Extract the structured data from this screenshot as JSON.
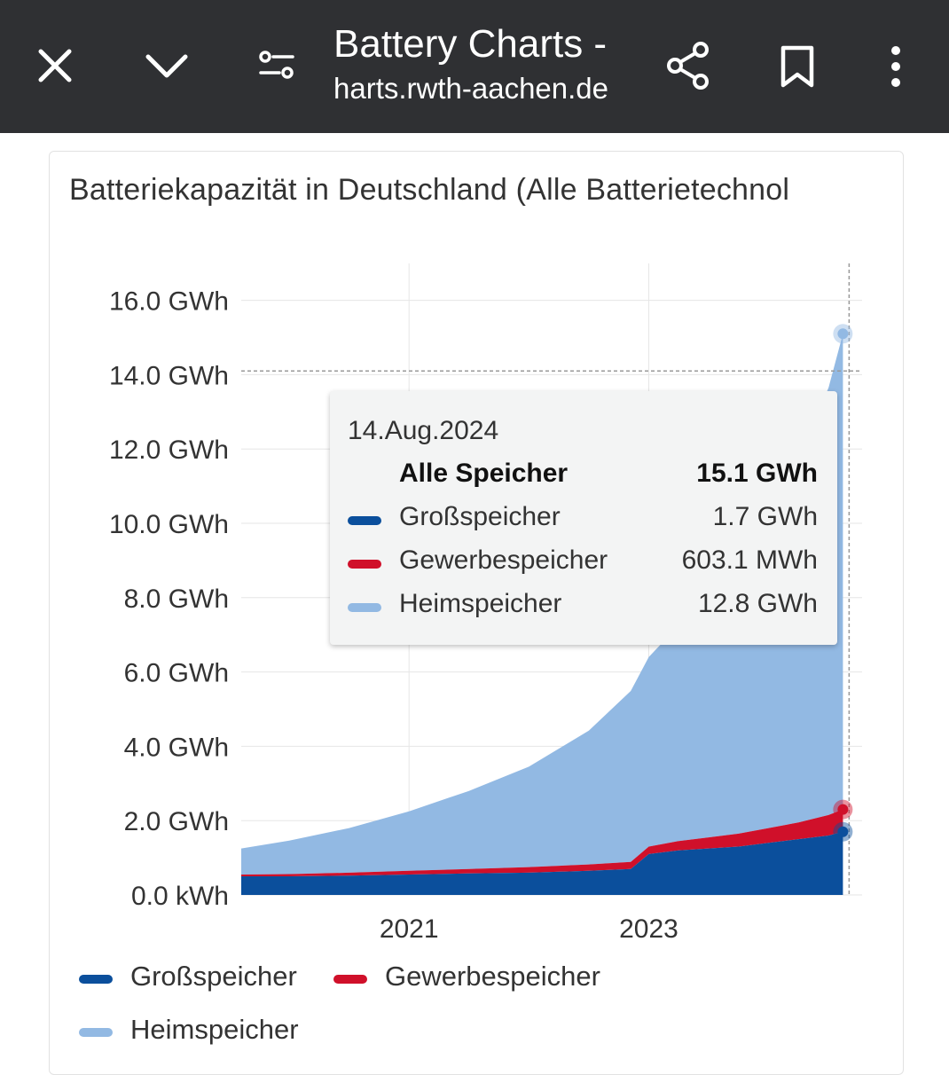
{
  "browser": {
    "title": "Battery Charts -",
    "url": "harts.rwth-aachen.de",
    "icons": [
      "close-icon",
      "chevron-down-icon",
      "page-settings-icon",
      "share-icon",
      "bookmark-icon",
      "more-vert-icon"
    ]
  },
  "colors": {
    "toolbar": "#2f3033",
    "gross": "#0b4f9c",
    "gewerbe": "#d0102a",
    "heim": "#92b9e3"
  },
  "tooltip": {
    "date": "14.Aug.2024",
    "rows": [
      {
        "label": "Alle Speicher",
        "value": "15.1 GWh"
      },
      {
        "label": "Großspeicher",
        "value": "1.7 GWh"
      },
      {
        "label": "Gewerbespeicher",
        "value": "603.1 MWh"
      },
      {
        "label": "Heimspeicher",
        "value": "12.8 GWh"
      }
    ]
  },
  "chart_data": {
    "type": "area",
    "title": "Batteriekapazität in Deutschland (Alle Batterietechnol",
    "stacked": true,
    "yunit": "GWh",
    "ylim": [
      0,
      17
    ],
    "yticks": [
      0,
      2,
      4,
      6,
      8,
      10,
      12,
      14,
      16
    ],
    "ytick_labels": [
      "0.0 kWh",
      "2.0 GWh",
      "4.0 GWh",
      "6.0 GWh",
      "8.0 GWh",
      "10.0 GWh",
      "12.0 GWh",
      "14.0 GWh",
      "16.0 GWh"
    ],
    "xlim": [
      2019.6,
      2024.78
    ],
    "xticks": [
      2021,
      2023
    ],
    "xtick_labels": [
      "2021",
      "2023"
    ],
    "x": [
      2019.6,
      2020.0,
      2020.5,
      2021.0,
      2021.5,
      2022.0,
      2022.5,
      2022.85,
      2023.0,
      2023.25,
      2023.5,
      2023.75,
      2024.0,
      2024.25,
      2024.5,
      2024.62
    ],
    "series": [
      {
        "name": "Großspeicher",
        "values": [
          0.5,
          0.5,
          0.52,
          0.55,
          0.58,
          0.6,
          0.65,
          0.7,
          1.1,
          1.2,
          1.25,
          1.3,
          1.4,
          1.5,
          1.6,
          1.7
        ]
      },
      {
        "name": "Gewerbespeicher",
        "values": [
          0.05,
          0.06,
          0.08,
          0.1,
          0.12,
          0.15,
          0.17,
          0.19,
          0.2,
          0.25,
          0.3,
          0.35,
          0.4,
          0.45,
          0.55,
          0.6
        ]
      },
      {
        "name": "Heimspeicher",
        "values": [
          0.7,
          0.9,
          1.2,
          1.6,
          2.1,
          2.7,
          3.6,
          4.6,
          5.1,
          5.8,
          6.5,
          7.4,
          8.5,
          9.8,
          11.5,
          12.8
        ]
      }
    ],
    "hover_x": 2024.62,
    "legend": [
      "Großspeicher",
      "Gewerbespeicher",
      "Heimspeicher"
    ],
    "legend_position": "bottom",
    "grid": true
  }
}
